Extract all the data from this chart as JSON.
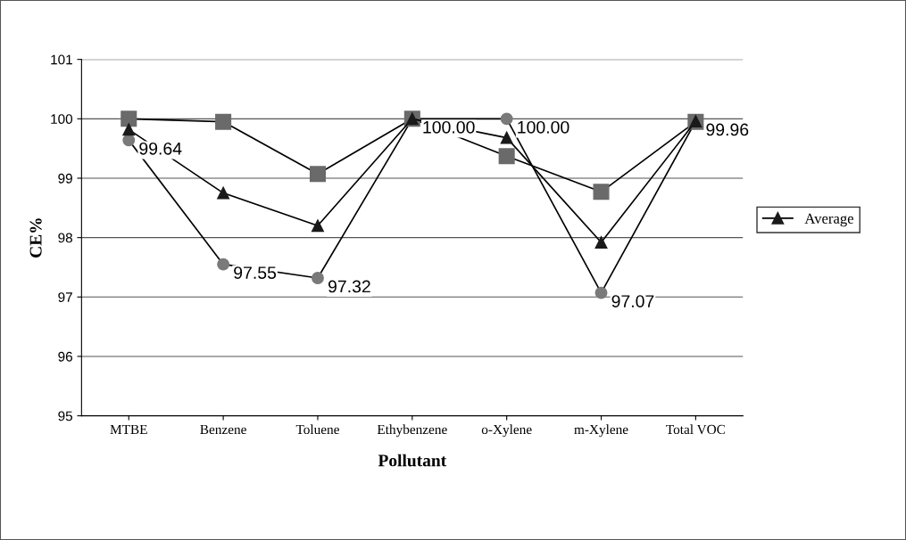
{
  "chart_data": {
    "type": "line",
    "xlabel": "Pollutant",
    "ylabel": "CE%",
    "categories": [
      "MTBE",
      "Benzene",
      "Toluene",
      "Ethybenzene",
      "o-Xylene",
      "m-Xylene",
      "Total VOC"
    ],
    "series": [
      {
        "color": "#7a7a7a",
        "marker": "circle",
        "values": [
          99.64,
          97.55,
          97.32,
          100.0,
          100.0,
          97.07,
          99.96
        ],
        "value_labels": [
          "99.64",
          "97.55",
          "97.32",
          "100.00",
          "100.00",
          "97.07",
          "99.96"
        ]
      },
      {
        "color": "#6a6a6a",
        "marker": "square",
        "values": [
          100.0,
          99.95,
          99.07,
          100.0,
          99.37,
          98.77,
          99.95
        ]
      },
      {
        "name": "Average",
        "color": "#1a1a1a",
        "marker": "triangle",
        "values": [
          99.82,
          98.75,
          98.2,
          100.0,
          99.68,
          97.92,
          99.96
        ]
      }
    ],
    "ylim": [
      95,
      101
    ],
    "yticks": [
      95,
      96,
      97,
      98,
      99,
      100,
      101
    ],
    "grid": "y",
    "legend": "right",
    "line_style": "solid"
  }
}
